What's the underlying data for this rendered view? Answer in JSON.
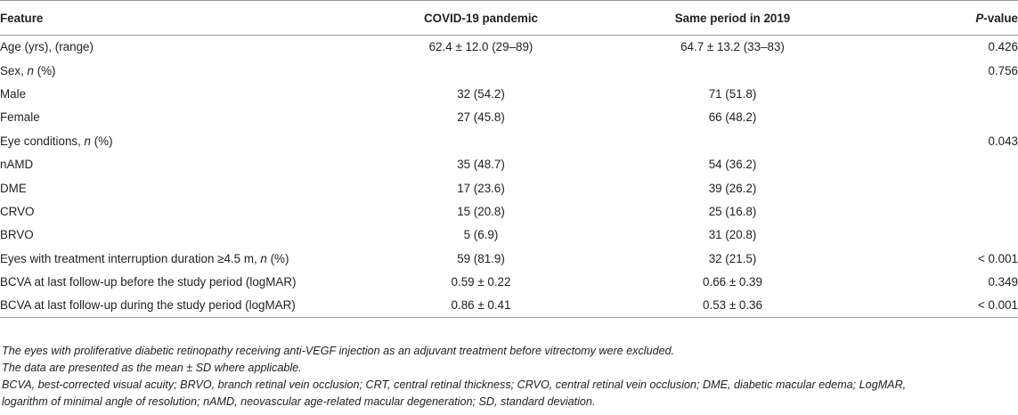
{
  "header": {
    "feature": "Feature",
    "covid": "COVID-19 pandemic",
    "same2019": "Same period in 2019",
    "p_italic": "P",
    "p_rest": "-value"
  },
  "rows": [
    {
      "feature": "Age (yrs), (range)",
      "covid": "62.4 ± 12.0 (29–89)",
      "same2019": "64.7 ± 13.2 (33–83)",
      "p": "0.426"
    },
    {
      "feature_pre": "Sex, ",
      "feature_it": "n",
      "feature_post": " (%)",
      "covid": "",
      "same2019": "",
      "p": "0.756"
    },
    {
      "feature": "Male",
      "covid": "32 (54.2)",
      "same2019": "71 (51.8)",
      "p": ""
    },
    {
      "feature": "Female",
      "covid": "27 (45.8)",
      "same2019": "66 (48.2)",
      "p": ""
    },
    {
      "feature_pre": "Eye conditions, ",
      "feature_it": "n",
      "feature_post": " (%)",
      "covid": "",
      "same2019": "",
      "p": "0.043"
    },
    {
      "feature": "nAMD",
      "covid": "35 (48.7)",
      "same2019": "54 (36.2)",
      "p": ""
    },
    {
      "feature": "DME",
      "covid": "17 (23.6)",
      "same2019": "39 (26.2)",
      "p": ""
    },
    {
      "feature": "CRVO",
      "covid": "15 (20.8)",
      "same2019": "25 (16.8)",
      "p": ""
    },
    {
      "feature": "BRVO",
      "covid": "5 (6.9)",
      "same2019": "31 (20.8)",
      "p": ""
    },
    {
      "feature_pre": "Eyes with treatment interruption duration ≥4.5 m, ",
      "feature_it": "n",
      "feature_post": " (%)",
      "covid": "59 (81.9)",
      "same2019": "32 (21.5)",
      "p": "< 0.001"
    },
    {
      "feature": "BCVA at last follow-up before the study period (logMAR)",
      "covid": "0.59 ± 0.22",
      "same2019": "0.66 ± 0.39",
      "p": "0.349"
    },
    {
      "feature": "BCVA at last follow-up during the study period (logMAR)",
      "covid": "0.86 ± 0.41",
      "same2019": "0.53 ± 0.36",
      "p": "< 0.001"
    }
  ],
  "notes": {
    "line1": "The eyes with proliferative diabetic retinopathy receiving anti-VEGF injection as an adjuvant treatment before vitrectomy were excluded.",
    "line2": "The data are presented as the mean ± SD where applicable.",
    "line3": "BCVA, best-corrected visual acuity; BRVO, branch retinal vein occlusion; CRT, central retinal thickness; CRVO, central retinal vein occlusion; DME, diabetic macular edema; LogMAR,",
    "line4": "logarithm of minimal angle of resolution; nAMD, neovascular age-related macular degeneration; SD, standard deviation."
  }
}
